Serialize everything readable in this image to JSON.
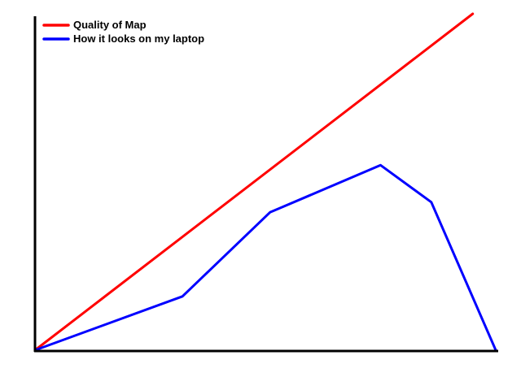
{
  "chart_data": {
    "type": "line",
    "title": "",
    "xlabel": "",
    "ylabel": "",
    "xlim": [
      0,
      100
    ],
    "ylim": [
      0,
      100
    ],
    "grid": false,
    "axes_ticks": false,
    "legend_placement": "top-left",
    "series": [
      {
        "name": "Quality of Map",
        "color": "#ff0000",
        "x": [
          0,
          95
        ],
        "y": [
          0,
          100
        ]
      },
      {
        "name": "How it looks on my laptop",
        "color": "#0000ff",
        "x": [
          0,
          32,
          51,
          75,
          86,
          100
        ],
        "y": [
          0,
          16,
          41,
          55,
          44,
          0
        ]
      }
    ]
  }
}
